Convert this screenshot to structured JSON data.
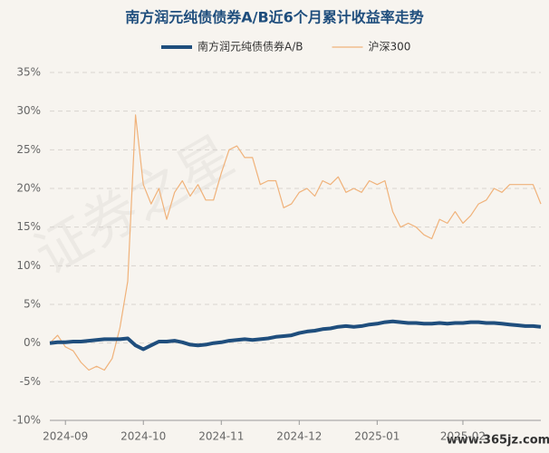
{
  "chart_data": {
    "type": "line",
    "title": "南方润元纯债债券A/B近6个月累计收益率走势",
    "watermark": "证券之星",
    "source": "www.365jz.com",
    "categories": [
      null,
      null,
      "2024-09",
      null,
      null,
      null,
      null,
      null,
      null,
      null,
      null,
      null,
      "2024-10",
      null,
      null,
      null,
      null,
      null,
      null,
      null,
      null,
      null,
      "2024-11",
      null,
      null,
      null,
      null,
      null,
      null,
      null,
      null,
      null,
      "2024-12",
      null,
      null,
      null,
      null,
      null,
      null,
      null,
      null,
      null,
      "2025-01",
      null,
      null,
      null,
      null,
      null,
      null,
      null,
      null,
      null,
      null,
      "2025-02",
      null,
      null,
      null,
      null,
      null,
      null,
      null,
      null,
      null,
      null
    ],
    "series": [
      {
        "name": "南方润元纯债债券A/B",
        "color": "#1f4e7d",
        "width": 4,
        "values": [
          0,
          0.1,
          0.1,
          0.2,
          0.2,
          0.3,
          0.4,
          0.5,
          0.5,
          0.5,
          0.6,
          -0.3,
          -0.8,
          -0.3,
          0.2,
          0.2,
          0.3,
          0.1,
          -0.2,
          -0.3,
          -0.2,
          0,
          0.1,
          0.3,
          0.4,
          0.5,
          0.4,
          0.5,
          0.6,
          0.8,
          0.9,
          1.0,
          1.3,
          1.5,
          1.6,
          1.8,
          1.9,
          2.1,
          2.2,
          2.1,
          2.2,
          2.4,
          2.5,
          2.7,
          2.8,
          2.7,
          2.6,
          2.6,
          2.5,
          2.5,
          2.6,
          2.5,
          2.6,
          2.6,
          2.7,
          2.7,
          2.6,
          2.6,
          2.5,
          2.4,
          2.3,
          2.2,
          2.2,
          2.1
        ]
      },
      {
        "name": "沪深300",
        "color": "#f0b27a",
        "width": 1.2,
        "values": [
          0,
          1,
          -0.5,
          -1,
          -2.5,
          -3.5,
          -3,
          -3.5,
          -2,
          2,
          8,
          29.5,
          20.5,
          18,
          20,
          16,
          19.5,
          21,
          19,
          20.5,
          18.5,
          18.5,
          22,
          25,
          25.5,
          24,
          24,
          20.5,
          21,
          21,
          17.5,
          18,
          19.5,
          20,
          19,
          21,
          20.5,
          21.5,
          19.5,
          20,
          19.5,
          21,
          20.5,
          21,
          17,
          15,
          15.5,
          15,
          14,
          13.5,
          16,
          15.5,
          17,
          15.5,
          16.5,
          18,
          18.5,
          20,
          19.5,
          20.5,
          20.5,
          20.5,
          20.5,
          18
        ]
      }
    ],
    "ylim": [
      -10,
      35
    ],
    "yticks": [
      {
        "value": -10,
        "label": "-10%"
      },
      {
        "value": -5,
        "label": "-5%"
      },
      {
        "value": 0,
        "label": "0%"
      },
      {
        "value": 5,
        "label": "5%"
      },
      {
        "value": 10,
        "label": "10%"
      },
      {
        "value": 15,
        "label": "15%"
      },
      {
        "value": 20,
        "label": "20%"
      },
      {
        "value": 25,
        "label": "25%"
      },
      {
        "value": 30,
        "label": "30%"
      },
      {
        "value": 35,
        "label": "35%"
      }
    ],
    "grid": true,
    "legend": "top"
  }
}
